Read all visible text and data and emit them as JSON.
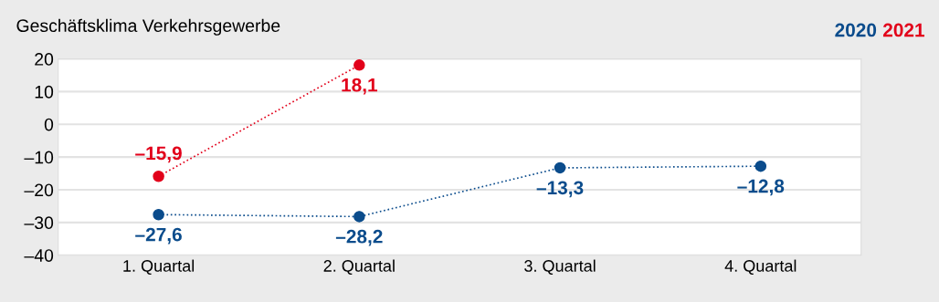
{
  "chart_data": {
    "type": "line",
    "title": "Geschäftsklima Verkehrsgewerbe",
    "categories": [
      "1. Quartal",
      "2. Quartal",
      "3. Quartal",
      "4. Quartal"
    ],
    "series": [
      {
        "name": "2020",
        "color": "#0b4c8c",
        "values": [
          -27.6,
          -28.2,
          -13.3,
          -12.8
        ],
        "value_labels": [
          "–27,6",
          "–28,2",
          "–13,3",
          "–12,8"
        ]
      },
      {
        "name": "2021",
        "color": "#e2001a",
        "values": [
          -15.9,
          18.1,
          null,
          null
        ],
        "value_labels": [
          "–15,9",
          "18,1",
          null,
          null
        ]
      }
    ],
    "ylim": [
      -40,
      20
    ],
    "yticks": [
      {
        "value": -40,
        "label": "–40"
      },
      {
        "value": -30,
        "label": "–30"
      },
      {
        "value": -20,
        "label": "–20"
      },
      {
        "value": -10,
        "label": "–10"
      },
      0,
      10,
      20
    ],
    "grid": "y",
    "legend": "top right",
    "marker": "circle",
    "line_style": "dotted"
  }
}
